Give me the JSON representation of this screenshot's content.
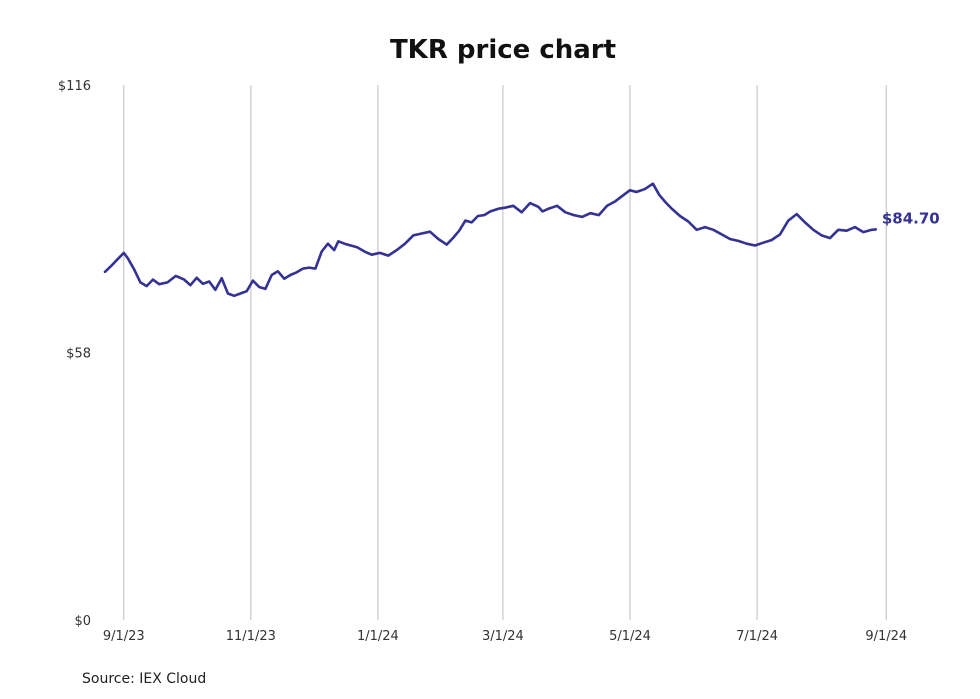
{
  "chart_data": {
    "type": "line",
    "title": "TKR price chart",
    "source": "Source: IEX Cloud",
    "xlabel": "",
    "ylabel": "",
    "ylim": [
      0,
      116
    ],
    "yticks": [
      {
        "value": 0,
        "label": "$0"
      },
      {
        "value": 58,
        "label": "$58"
      },
      {
        "value": 116,
        "label": "$116"
      }
    ],
    "xlim": [
      "2023-08-23",
      "2024-09-10"
    ],
    "xticks": [
      {
        "date": "2023-09-01",
        "label": "9/1/23"
      },
      {
        "date": "2023-11-01",
        "label": "11/1/23"
      },
      {
        "date": "2024-01-01",
        "label": "1/1/24"
      },
      {
        "date": "2024-03-01",
        "label": "3/1/24"
      },
      {
        "date": "2024-05-01",
        "label": "5/1/24"
      },
      {
        "date": "2024-07-01",
        "label": "7/1/24"
      },
      {
        "date": "2024-09-01",
        "label": "9/1/24"
      }
    ],
    "grid": "vertical",
    "line_color": "#343293",
    "last_value_label": "$84.70",
    "series": [
      {
        "x": [
          "2023-08-23",
          "2023-08-26",
          "2023-08-29",
          "2023-09-01",
          "2023-09-03",
          "2023-09-06",
          "2023-09-09",
          "2023-09-12",
          "2023-09-15",
          "2023-09-18",
          "2023-09-22",
          "2023-09-26",
          "2023-09-30",
          "2023-10-03",
          "2023-10-06",
          "2023-10-09",
          "2023-10-12",
          "2023-10-15",
          "2023-10-18",
          "2023-10-21",
          "2023-10-24",
          "2023-10-27",
          "2023-10-30",
          "2023-11-02",
          "2023-11-05",
          "2023-11-08",
          "2023-11-11",
          "2023-11-14",
          "2023-11-17",
          "2023-11-20",
          "2023-11-23",
          "2023-11-26",
          "2023-11-29",
          "2023-12-02",
          "2023-12-05",
          "2023-12-08",
          "2023-12-11",
          "2023-12-13",
          "2023-12-16",
          "2023-12-19",
          "2023-12-22",
          "2023-12-26",
          "2023-12-29",
          "2024-01-02",
          "2024-01-06",
          "2024-01-10",
          "2024-01-14",
          "2024-01-18",
          "2024-01-22",
          "2024-01-26",
          "2024-01-30",
          "2024-02-03",
          "2024-02-06",
          "2024-02-09",
          "2024-02-12",
          "2024-02-15",
          "2024-02-18",
          "2024-02-21",
          "2024-02-24",
          "2024-02-28",
          "2024-03-02",
          "2024-03-06",
          "2024-03-10",
          "2024-03-14",
          "2024-03-18",
          "2024-03-20",
          "2024-03-23",
          "2024-03-27",
          "2024-03-31",
          "2024-04-04",
          "2024-04-08",
          "2024-04-12",
          "2024-04-16",
          "2024-04-20",
          "2024-04-24",
          "2024-04-28",
          "2024-05-01",
          "2024-05-04",
          "2024-05-08",
          "2024-05-12",
          "2024-05-15",
          "2024-05-18",
          "2024-05-21",
          "2024-05-25",
          "2024-05-29",
          "2024-06-02",
          "2024-06-06",
          "2024-06-10",
          "2024-06-14",
          "2024-06-18",
          "2024-06-22",
          "2024-06-26",
          "2024-06-30",
          "2024-07-04",
          "2024-07-08",
          "2024-07-12",
          "2024-07-16",
          "2024-07-20",
          "2024-07-24",
          "2024-07-28",
          "2024-08-01",
          "2024-08-05",
          "2024-08-09",
          "2024-08-13",
          "2024-08-17",
          "2024-08-21",
          "2024-08-25",
          "2024-08-27"
        ],
        "y": [
          75.5,
          76.8,
          78.2,
          79.6,
          78.4,
          76.0,
          73.2,
          72.4,
          73.8,
          72.8,
          73.2,
          74.6,
          73.8,
          72.6,
          74.2,
          72.9,
          73.4,
          71.6,
          74.1,
          70.8,
          70.3,
          70.8,
          71.3,
          73.6,
          72.2,
          71.8,
          74.8,
          75.6,
          74.0,
          74.8,
          75.4,
          76.2,
          76.4,
          76.2,
          79.9,
          81.6,
          80.2,
          82.1,
          81.6,
          81.2,
          80.8,
          79.8,
          79.2,
          79.6,
          79.0,
          80.2,
          81.6,
          83.4,
          83.8,
          84.2,
          82.6,
          81.4,
          82.8,
          84.4,
          86.6,
          86.2,
          87.6,
          87.8,
          88.6,
          89.2,
          89.4,
          89.8,
          88.4,
          90.4,
          89.6,
          88.6,
          89.2,
          89.8,
          88.4,
          87.8,
          87.4,
          88.2,
          87.8,
          89.8,
          90.8,
          92.2,
          93.2,
          92.8,
          93.4,
          94.6,
          92.2,
          90.6,
          89.2,
          87.6,
          86.4,
          84.6,
          85.2,
          84.6,
          83.6,
          82.6,
          82.2,
          81.6,
          81.2,
          81.8,
          82.4,
          83.6,
          86.6,
          88.0,
          86.2,
          84.6,
          83.4,
          82.8,
          84.6,
          84.4,
          85.2,
          84.1,
          84.6,
          84.7
        ]
      }
    ]
  }
}
